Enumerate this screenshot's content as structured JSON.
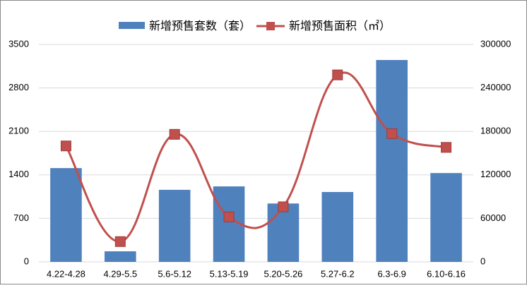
{
  "chart_data": {
    "type": "bar-line",
    "categories": [
      "4.22-4.28",
      "4.29-5.5",
      "5.6-5.12",
      "5.13-5.19",
      "5.20-5.26",
      "5.27-6.2",
      "6.3-6.9",
      "6.10-6.16"
    ],
    "series": [
      {
        "name": "新增预售套数（套）",
        "type": "bar",
        "color": "#4f81bd",
        "values": [
          1510,
          170,
          1160,
          1215,
          940,
          1125,
          3250,
          1430
        ]
      },
      {
        "name": "新增预售面积（㎡）",
        "type": "line",
        "axis": "y2",
        "color": "#c0504d",
        "values": [
          160000,
          28000,
          176000,
          62000,
          76000,
          258000,
          177000,
          158000
        ]
      }
    ],
    "ylim": [
      0,
      3500
    ],
    "yticks": [
      0,
      700,
      1400,
      2100,
      2800,
      3500
    ],
    "y2lim": [
      0,
      300000
    ],
    "y2ticks": [
      0,
      60000,
      120000,
      180000,
      240000,
      300000
    ],
    "grid": true,
    "legend": "top"
  }
}
